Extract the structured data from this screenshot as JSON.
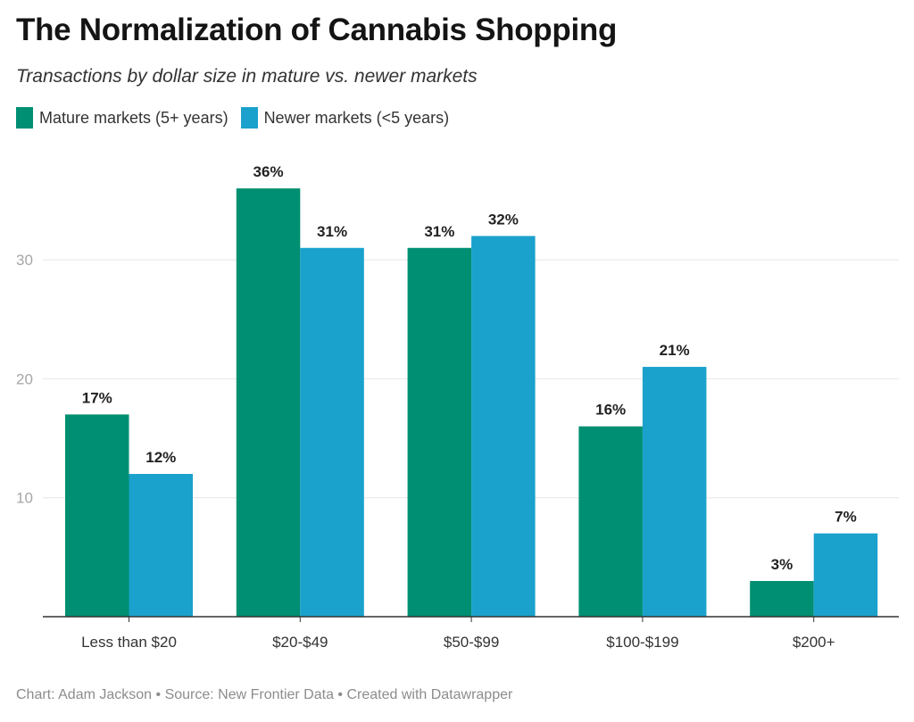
{
  "header": {
    "title": "The Normalization of Cannabis Shopping",
    "subtitle": "Transactions by dollar size in mature vs. newer markets"
  },
  "footer": {
    "text": "Chart: Adam Jackson • Source: New Frontier Data • Created with Datawrapper"
  },
  "chart_data": {
    "type": "bar",
    "title": "The Normalization of Cannabis Shopping",
    "subtitle": "Transactions by dollar size in mature vs. newer markets",
    "xlabel": "",
    "ylabel": "",
    "categories": [
      "Less than $20",
      "$20-$49",
      "$50-$99",
      "$100-$199",
      "$200+"
    ],
    "series": [
      {
        "name": "Mature markets (5+ years)",
        "color": "#008f72",
        "values": [
          17,
          36,
          31,
          16,
          3
        ],
        "labels": [
          "17%",
          "36%",
          "31%",
          "16%",
          "3%"
        ]
      },
      {
        "name": "Newer markets (<5 years)",
        "color": "#1aa1cc",
        "values": [
          12,
          31,
          32,
          21,
          7
        ],
        "labels": [
          "12%",
          "31%",
          "32%",
          "21%",
          "7%"
        ]
      }
    ],
    "yticks": [
      10,
      20,
      30
    ],
    "ylim": [
      0,
      40
    ],
    "grid": true,
    "legend": "top-left"
  }
}
